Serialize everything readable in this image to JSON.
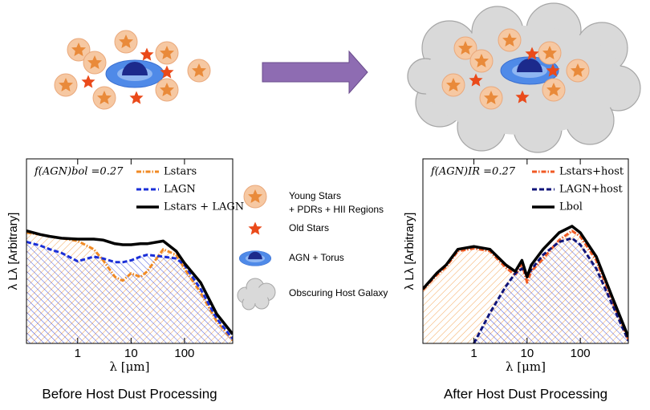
{
  "chart_data": [
    {
      "type": "line",
      "annotation": "f(AGN)bol =0.27",
      "xlabel": "λ [μm]",
      "ylabel": "λ Lλ [Arbitrary]",
      "caption": "Before Host Dust Processing",
      "xlog": true,
      "xlim": [
        0.11,
        800
      ],
      "ylim": [
        0,
        10
      ],
      "xticks": [
        1,
        10,
        100
      ],
      "x": [
        0.11,
        0.2,
        0.3,
        0.5,
        1,
        2,
        3,
        5,
        7,
        10,
        15,
        20,
        40,
        70,
        100,
        200,
        400,
        800
      ],
      "series": [
        {
          "name": "Lstars",
          "color": "#f08a24",
          "style": "dashdot",
          "hatch": true,
          "values": [
            6.0,
            5.9,
            5.8,
            5.7,
            5.55,
            5.1,
            4.5,
            3.6,
            3.4,
            3.8,
            3.6,
            3.9,
            5.1,
            4.8,
            4.05,
            2.75,
            1.2,
            0.17
          ]
        },
        {
          "name": "LAGN",
          "color": "#1a2fd8",
          "style": "dashed",
          "hatch": true,
          "values": [
            5.5,
            5.3,
            5.1,
            4.9,
            4.45,
            4.7,
            4.6,
            4.4,
            4.4,
            4.5,
            4.7,
            4.8,
            4.7,
            4.6,
            4.25,
            2.95,
            1.35,
            0.25
          ]
        },
        {
          "name": "Lstars + LAGN",
          "color": "#000000",
          "style": "solid",
          "hatch": false,
          "values": [
            6.1,
            5.9,
            5.8,
            5.7,
            5.65,
            5.65,
            5.6,
            5.4,
            5.35,
            5.35,
            5.4,
            5.4,
            5.55,
            5.0,
            4.35,
            3.3,
            1.6,
            0.5
          ]
        }
      ]
    },
    {
      "type": "line",
      "annotation": "f(AGN)IR =0.27",
      "xlabel": "λ [μm]",
      "ylabel": "λ Lλ [Arbitrary]",
      "caption": "After Host Dust Processing",
      "xlog": true,
      "xlim": [
        0.11,
        800
      ],
      "ylim": [
        0,
        10
      ],
      "xticks": [
        1,
        10,
        100
      ],
      "x": [
        0.11,
        0.2,
        0.3,
        0.5,
        1,
        2,
        4,
        6,
        8,
        10,
        12,
        20,
        40,
        70,
        100,
        200,
        400,
        800
      ],
      "series": [
        {
          "name": "Lstars+host",
          "color": "#f05a24",
          "style": "dashdot",
          "hatch": true,
          "values": [
            2.9,
            3.7,
            4.15,
            5.0,
            5.15,
            5.0,
            4.1,
            3.7,
            4.3,
            3.3,
            3.9,
            4.6,
            5.6,
            6.1,
            5.8,
            4.5,
            2.3,
            0.2
          ]
        },
        {
          "name": "LAGN+host",
          "color": "#10147a",
          "style": "dashed",
          "hatch": true,
          "values": [
            null,
            null,
            null,
            null,
            0.0,
            1.65,
            3.1,
            3.8,
            4.05,
            3.7,
            4.0,
            4.8,
            5.5,
            5.7,
            5.35,
            4.05,
            2.1,
            0.15
          ]
        },
        {
          "name": "Lbol",
          "color": "#000000",
          "style": "solid",
          "hatch": false,
          "values": [
            2.95,
            3.8,
            4.25,
            5.1,
            5.25,
            5.1,
            4.25,
            3.9,
            4.5,
            3.6,
            4.25,
            5.1,
            6.0,
            6.35,
            6.0,
            4.7,
            2.5,
            0.35
          ]
        }
      ]
    }
  ],
  "key": {
    "young_stars": [
      "Young Stars",
      "+ PDRs + HII Regions"
    ],
    "old_stars": "Old Stars",
    "agn": "AGN + Torus",
    "host": "Obscuring Host Galaxy"
  }
}
